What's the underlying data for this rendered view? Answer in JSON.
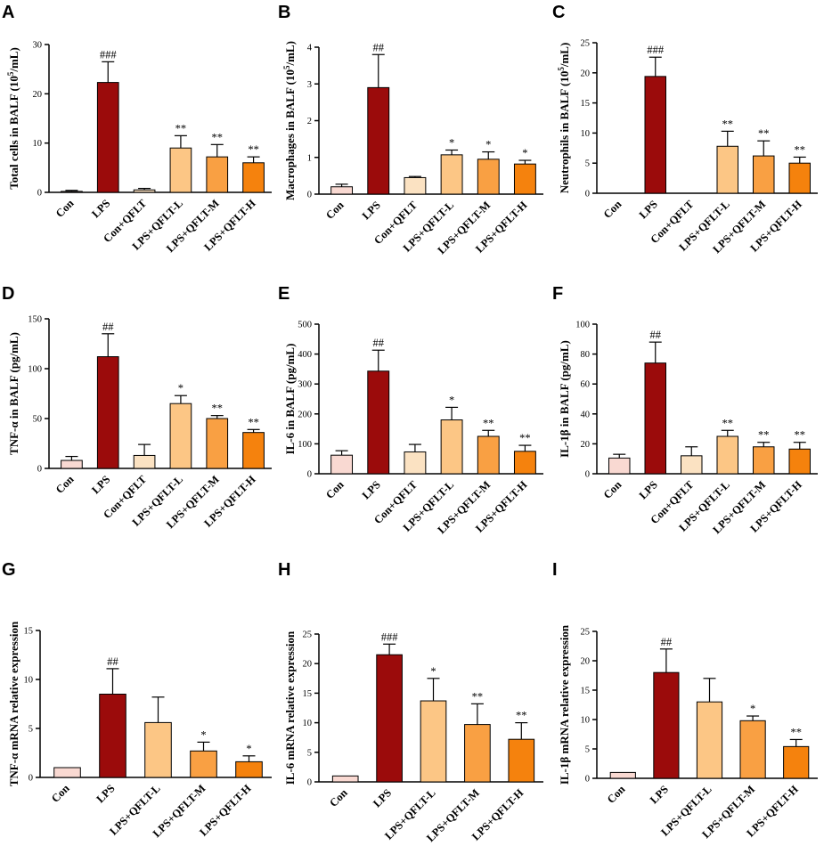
{
  "colors": {
    "Con": "#f9d9d2",
    "LPS": "#9b0b0b",
    "Con+QFLT": "#fbe2c2",
    "LPS+QFLT-L": "#fcc685",
    "LPS+QFLT-M": "#f9a043",
    "LPS+QFLT-H": "#f5820d"
  },
  "chart_data": [
    {
      "panel": "A",
      "type": "bar",
      "ylabel_pre": "Total cells in BALF (10",
      "ylabel_sup": "5",
      "ylabel_post": "/mL)",
      "ylim": [
        0,
        30
      ],
      "yticks": [
        0,
        10,
        20,
        30
      ],
      "categories": [
        "Con",
        "LPS",
        "Con+QFLT",
        "LPS+QFLT-L",
        "LPS+QFLT-M",
        "LPS+QFLT-H"
      ],
      "values": [
        0.2,
        22.3,
        0.5,
        9.0,
        7.2,
        6.0
      ],
      "errors": [
        0.2,
        4.2,
        0.3,
        2.5,
        2.5,
        1.2
      ],
      "sig": [
        "",
        "###",
        "",
        "**",
        "**",
        "**"
      ]
    },
    {
      "panel": "B",
      "type": "bar",
      "ylabel_pre": "Macrophages in BALF (10",
      "ylabel_sup": "5",
      "ylabel_post": "/mL)",
      "ylim": [
        0,
        4
      ],
      "yticks": [
        0,
        1,
        2,
        3,
        4
      ],
      "categories": [
        "Con",
        "LPS",
        "Con+QFLT",
        "LPS+QFLT-L",
        "LPS+QFLT-M",
        "LPS+QFLT-H"
      ],
      "values": [
        0.2,
        2.9,
        0.45,
        1.07,
        0.95,
        0.82
      ],
      "errors": [
        0.07,
        0.9,
        0.03,
        0.13,
        0.2,
        0.1
      ],
      "sig": [
        "",
        "##",
        "",
        "*",
        "*",
        "*"
      ]
    },
    {
      "panel": "C",
      "type": "bar",
      "ylabel_pre": "Neutrophils in BALF (10",
      "ylabel_sup": "5",
      "ylabel_post": "/mL)",
      "ylim": [
        0,
        25
      ],
      "yticks": [
        0,
        5,
        10,
        15,
        20,
        25
      ],
      "categories": [
        "Con",
        "LPS",
        "Con+QFLT",
        "LPS+QFLT-L",
        "LPS+QFLT-M",
        "LPS+QFLT-H"
      ],
      "values": [
        0,
        19.4,
        0,
        7.8,
        6.2,
        5.0
      ],
      "errors": [
        0,
        3.2,
        0,
        2.5,
        2.5,
        1.0
      ],
      "sig": [
        "",
        "###",
        "",
        "**",
        "**",
        "**"
      ]
    },
    {
      "panel": "D",
      "type": "bar",
      "ylabel_pre": "TNF-α in BALF (pg/mL)",
      "ylabel_sup": "",
      "ylabel_post": "",
      "ylim": [
        0,
        150
      ],
      "yticks": [
        0,
        50,
        100,
        150
      ],
      "categories": [
        "Con",
        "LPS",
        "Con+QFLT",
        "LPS+QFLT-L",
        "LPS+QFLT-M",
        "LPS+QFLT-H"
      ],
      "values": [
        8,
        112,
        13,
        65,
        50,
        36
      ],
      "errors": [
        4,
        23,
        11,
        8,
        3,
        3
      ],
      "sig": [
        "",
        "##",
        "",
        "*",
        "**",
        "**"
      ]
    },
    {
      "panel": "E",
      "type": "bar",
      "ylabel_pre": "IL-6 in BALF (pg/mL)",
      "ylabel_sup": "",
      "ylabel_post": "",
      "ylim": [
        0,
        500
      ],
      "yticks": [
        0,
        100,
        200,
        300,
        400,
        500
      ],
      "categories": [
        "Con",
        "LPS",
        "Con+QFLT",
        "LPS+QFLT-L",
        "LPS+QFLT-M",
        "LPS+QFLT-H"
      ],
      "values": [
        62,
        343,
        73,
        180,
        125,
        75
      ],
      "errors": [
        15,
        70,
        25,
        42,
        20,
        20
      ],
      "sig": [
        "",
        "##",
        "",
        "*",
        "**",
        "**"
      ]
    },
    {
      "panel": "F",
      "type": "bar",
      "ylabel_pre": "IL-1β in BALF (pg/mL)",
      "ylabel_sup": "",
      "ylabel_post": "",
      "ylim": [
        0,
        100
      ],
      "yticks": [
        0,
        20,
        40,
        60,
        80,
        100
      ],
      "categories": [
        "Con",
        "LPS",
        "Con+QFLT",
        "LPS+QFLT-L",
        "LPS+QFLT-M",
        "LPS+QFLT-H"
      ],
      "values": [
        10.5,
        74,
        12,
        25,
        18,
        16.5
      ],
      "errors": [
        2.5,
        14,
        6,
        4,
        3,
        4.5
      ],
      "sig": [
        "",
        "##",
        "",
        "**",
        "**",
        "**"
      ]
    },
    {
      "panel": "G",
      "type": "bar",
      "ylabel_pre": "TNF-α mRNA relative expression",
      "ylabel_sup": "",
      "ylabel_post": "",
      "ylim": [
        0,
        15
      ],
      "yticks": [
        0,
        5,
        10,
        15
      ],
      "categories": [
        "Con",
        "LPS",
        "LPS+QFLT-L",
        "LPS+QFLT-M",
        "LPS+QFLT-H"
      ],
      "values": [
        1,
        8.5,
        5.6,
        2.7,
        1.6
      ],
      "errors": [
        0,
        2.6,
        2.6,
        0.9,
        0.6
      ],
      "sig": [
        "",
        "##",
        "",
        "*",
        "*"
      ]
    },
    {
      "panel": "H",
      "type": "bar",
      "ylabel_pre": "IL-6 mRNA relative expression",
      "ylabel_sup": "",
      "ylabel_post": "",
      "ylim": [
        0,
        25
      ],
      "yticks": [
        0,
        5,
        10,
        15,
        20,
        25
      ],
      "categories": [
        "Con",
        "LPS",
        "LPS+QFLT-L",
        "LPS+QFLT-M",
        "LPS+QFLT-H"
      ],
      "values": [
        1,
        21.5,
        13.7,
        9.7,
        7.2
      ],
      "errors": [
        0,
        1.8,
        3.8,
        3.5,
        2.8
      ],
      "sig": [
        "",
        "###",
        "*",
        "**",
        "**"
      ]
    },
    {
      "panel": "I",
      "type": "bar",
      "ylabel_pre": "IL-1β mRNA relative expression",
      "ylabel_sup": "",
      "ylabel_post": "",
      "ylim": [
        0,
        25
      ],
      "yticks": [
        0,
        5,
        10,
        15,
        20,
        25
      ],
      "categories": [
        "Con",
        "LPS",
        "LPS+QFLT-L",
        "LPS+QFLT-M",
        "LPS+QFLT-H"
      ],
      "values": [
        1,
        18,
        13,
        9.8,
        5.4
      ],
      "errors": [
        0,
        4,
        4,
        0.8,
        1.2
      ],
      "sig": [
        "",
        "##",
        "",
        "*",
        "**"
      ]
    }
  ]
}
